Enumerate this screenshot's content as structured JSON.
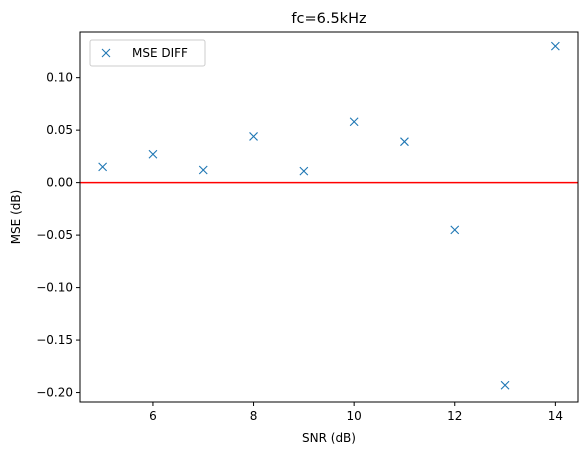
{
  "chart_data": {
    "type": "scatter",
    "title": "fc=6.5kHz",
    "xlabel": "SNR (dB)",
    "ylabel": "MSE (dB)",
    "xlim": [
      4.55,
      14.45
    ],
    "ylim": [
      -0.209,
      0.1435
    ],
    "xticks": [
      6,
      8,
      10,
      12,
      14
    ],
    "yticks": [
      -0.2,
      -0.15,
      -0.1,
      -0.05,
      0.0,
      0.05,
      0.1
    ],
    "ytick_labels": [
      "−0.20",
      "−0.15",
      "−0.10",
      "−0.05",
      "0.00",
      "0.05",
      "0.10"
    ],
    "grid": false,
    "legend": {
      "position": "top-left",
      "entries": [
        {
          "label": "MSE DIFF",
          "marker": "x",
          "color": "#1f77b4"
        }
      ]
    },
    "series": [
      {
        "name": "MSE DIFF",
        "marker": "x",
        "color": "#1f77b4",
        "x": [
          5,
          6,
          7,
          8,
          9,
          10,
          11,
          12,
          13,
          14
        ],
        "y": [
          0.015,
          0.027,
          0.012,
          0.044,
          0.011,
          0.058,
          0.039,
          -0.045,
          -0.193,
          0.13
        ]
      }
    ],
    "reference_line": {
      "y": 0.0,
      "color": "#ff0000"
    }
  }
}
